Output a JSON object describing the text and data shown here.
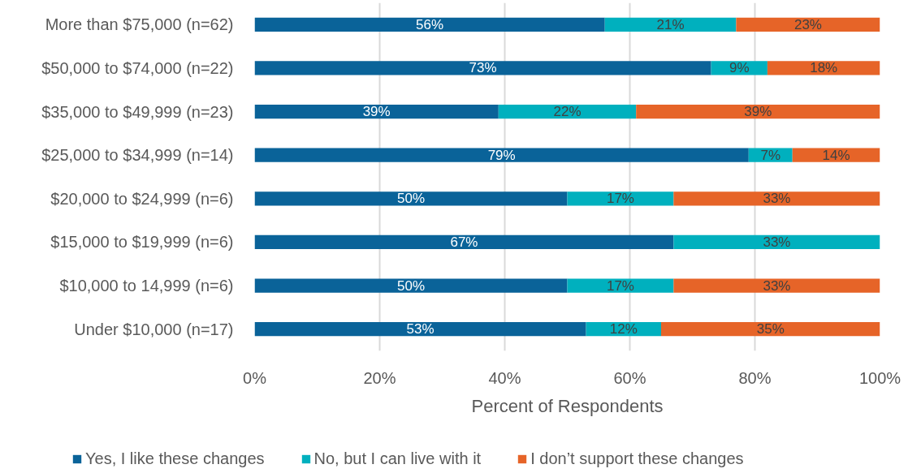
{
  "chart_data": {
    "type": "bar",
    "orientation": "horizontal",
    "stacked": true,
    "categories": [
      "More than $75,000 (n=62)",
      "$50,000 to $74,000 (n=22)",
      "$35,000 to $49,999 (n=23)",
      "$25,000 to $34,999 (n=14)",
      "$20,000 to $24,999 (n=6)",
      "$15,000 to $19,999 (n=6)",
      "$10,000 to 14,999 (n=6)",
      "Under $10,000 (n=17)"
    ],
    "xlim": [
      0,
      100
    ],
    "xticks": [
      {
        "value": 0,
        "label": "0%"
      },
      {
        "value": 20,
        "label": "20%"
      },
      {
        "value": 40,
        "label": "40%"
      },
      {
        "value": 60,
        "label": "60%"
      },
      {
        "value": 80,
        "label": "80%"
      },
      {
        "value": 100,
        "label": "100%"
      }
    ],
    "xlabel": "Percent of Respondents",
    "grid": "x",
    "legend": "bottom",
    "series": [
      {
        "name": "Yes, I like these changes",
        "color": "#0a6399",
        "values": [
          56,
          73,
          39,
          79,
          50,
          67,
          50,
          53
        ],
        "value_labels": [
          "56%",
          "73%",
          "39%",
          "79%",
          "50%",
          "67%",
          "50%",
          "53%"
        ]
      },
      {
        "name": "No, but I can live with it",
        "color": "#00b0be",
        "values": [
          21,
          9,
          22,
          7,
          17,
          33,
          17,
          12
        ],
        "value_labels": [
          "21%",
          "9%",
          "22%",
          "7%",
          "17%",
          "33%",
          "17%",
          "12%"
        ]
      },
      {
        "name": "I don’t support these changes",
        "color": "#e66428",
        "values": [
          23,
          18,
          39,
          14,
          33,
          null,
          33,
          35
        ],
        "value_labels": [
          "23%",
          "18%",
          "39%",
          "14%",
          "33%",
          null,
          "33%",
          "35%"
        ]
      }
    ]
  }
}
